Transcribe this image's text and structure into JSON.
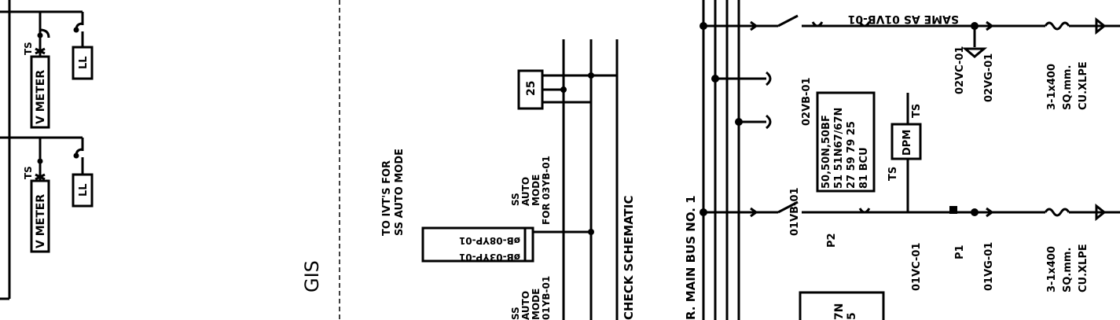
{
  "labels": {
    "gis": "GIS",
    "ivt_line1": "TO IVT'S FOR",
    "ivt_line2": "SS AUTO MODE",
    "ss_auto_mode_1": [
      "SS",
      "AUTO",
      "MODE",
      "FOR 03YB-01"
    ],
    "ss_auto_mode_2": [
      "SS",
      "AUTO",
      "MODE",
      "01YB-01"
    ],
    "check_schematic": "CHECK SCHEMATIC",
    "main_bus": "R. MAIN BUS NO. 1",
    "ts_upper": "TS",
    "ts_lower": "TS",
    "v_meter_upper": "V METER",
    "v_meter_lower": "V METER",
    "ll_upper": "LL",
    "ll_lower": "LL",
    "relay_25": "25",
    "vt_label_1": "øB-03YP-01",
    "vt_label_2": "øB-08YP-01",
    "vb_02": "02VB-01",
    "vb_01": "01VB-01",
    "vc_02": "02VC-01",
    "vc_01": "01VC-01",
    "vg_02": "02VG-01",
    "vg_01": "01VG-01",
    "same_as": "SAME AS 01VB-01",
    "relay_block": [
      "50,50N,50BF",
      "51 51N67/67N",
      "27 59 79 25",
      "81 BCU"
    ],
    "dpm": "DPM",
    "ts_dpm": "TS",
    "ts_dpm_b": "TS",
    "p1": "P1",
    "p2": "P2",
    "cable_1": [
      "3-1x400",
      "SQ.mm.",
      "CU.XLPE"
    ],
    "cable_2": [
      "3-1x400",
      "SQ.mm.",
      "CU.XLPE"
    ],
    "partial_box": [
      "7N",
      "5"
    ]
  }
}
